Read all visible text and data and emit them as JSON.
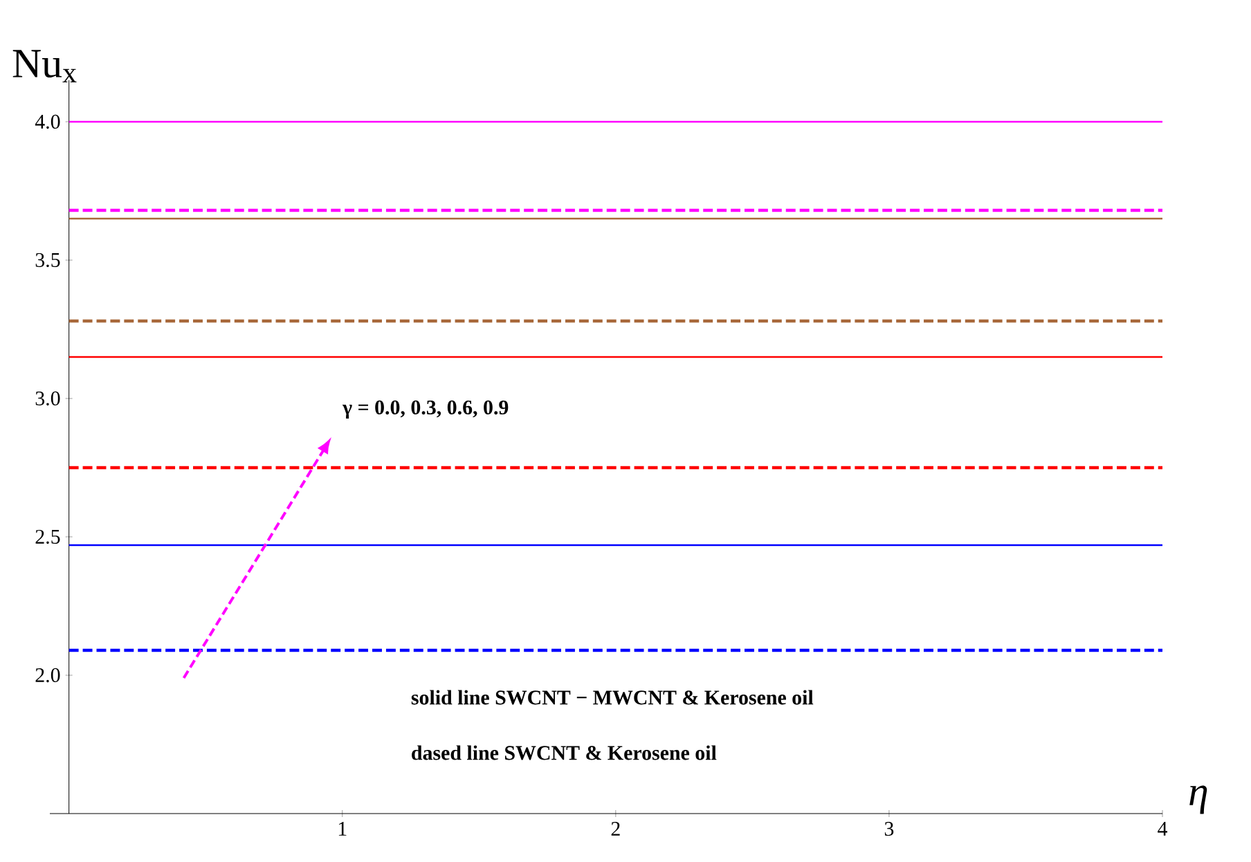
{
  "chart_data": {
    "type": "line",
    "xlabel": "η",
    "ylabel": "Nu$_{x}$",
    "x": [
      0,
      4
    ],
    "series": [
      {
        "color": "#ff00ff",
        "line_style": "solid",
        "values": [
          4.0,
          4.0
        ]
      },
      {
        "color": "#ff00ff",
        "line_style": "dashed",
        "values": [
          3.68,
          3.68
        ]
      },
      {
        "color": "#a8683a",
        "line_style": "solid",
        "values": [
          3.65,
          3.65
        ]
      },
      {
        "color": "#a8683a",
        "line_style": "dashed",
        "values": [
          3.28,
          3.28
        ]
      },
      {
        "color": "#ff0000",
        "line_style": "solid",
        "values": [
          3.15,
          3.15
        ]
      },
      {
        "color": "#ff0000",
        "line_style": "dashed",
        "values": [
          2.75,
          2.75
        ]
      },
      {
        "color": "#0000ff",
        "line_style": "solid",
        "values": [
          2.47,
          2.47
        ]
      },
      {
        "color": "#0000ff",
        "line_style": "dashed",
        "values": [
          2.09,
          2.09
        ]
      }
    ],
    "xlim": [
      -0.07,
      4.0
    ],
    "ylim": [
      1.5,
      4.15
    ],
    "xticks": [
      1,
      2,
      3,
      4
    ],
    "yticks": [
      {
        "value": 2,
        "label": "2.0"
      },
      {
        "value": 2.5,
        "label": "2.5"
      },
      {
        "value": 3,
        "label": "3.0"
      },
      {
        "value": 3.5,
        "label": "3.5"
      },
      {
        "value": 4,
        "label": "4.0"
      }
    ],
    "marker": "none",
    "annotations": [
      "γ = 0.0, 0.3, 0.6, 0.9",
      "solid line SWCNT − MWCNT & Kerosene oil",
      "dased line SWCNT & Kerosene oil"
    ]
  }
}
